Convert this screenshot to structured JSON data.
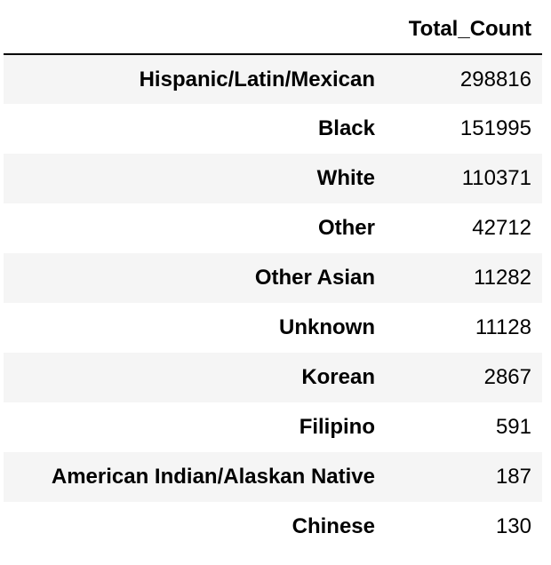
{
  "chart_data": {
    "type": "table",
    "index_header": "",
    "columns": [
      "Total_Count"
    ],
    "rows": [
      {
        "label": "Hispanic/Latin/Mexican",
        "value": 298816
      },
      {
        "label": "Black",
        "value": 151995
      },
      {
        "label": "White",
        "value": 110371
      },
      {
        "label": "Other",
        "value": 42712
      },
      {
        "label": "Other Asian",
        "value": 11282
      },
      {
        "label": "Unknown",
        "value": 11128
      },
      {
        "label": "Korean",
        "value": 2867
      },
      {
        "label": "Filipino",
        "value": 591
      },
      {
        "label": "American Indian/Alaskan Native",
        "value": 187
      },
      {
        "label": "Chinese",
        "value": 130
      }
    ]
  }
}
